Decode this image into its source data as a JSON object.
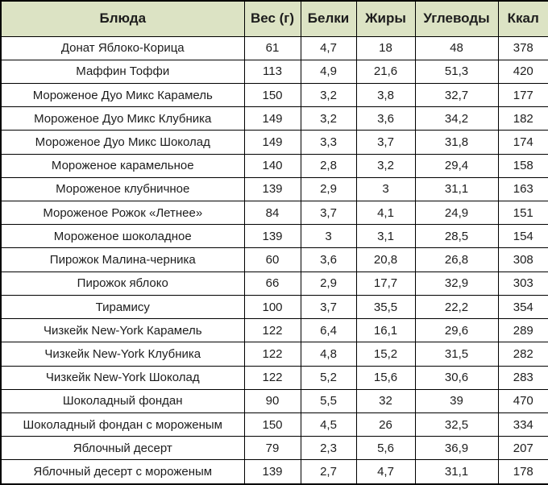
{
  "colors": {
    "header_bg": "#dce3c4",
    "border": "#000000",
    "text": "#1d1d1d",
    "row_bg": "#ffffff"
  },
  "chart_data": {
    "type": "table",
    "title": "",
    "columns": [
      "Блюда",
      "Вес (г)",
      "Белки",
      "Жиры",
      "Углеводы",
      "Ккал"
    ],
    "rows": [
      [
        "Донат Яблоко-Корица",
        "61",
        "4,7",
        "18",
        "48",
        "378"
      ],
      [
        "Маффин Тоффи",
        "113",
        "4,9",
        "21,6",
        "51,3",
        "420"
      ],
      [
        "Мороженое Дуо Микс Карамель",
        "150",
        "3,2",
        "3,8",
        "32,7",
        "177"
      ],
      [
        "Мороженое Дуо Микс Клубника",
        "149",
        "3,2",
        "3,6",
        "34,2",
        "182"
      ],
      [
        "Мороженое Дуо Микс Шоколад",
        "149",
        "3,3",
        "3,7",
        "31,8",
        "174"
      ],
      [
        "Мороженое карамельное",
        "140",
        "2,8",
        "3,2",
        "29,4",
        "158"
      ],
      [
        "Мороженое клубничное",
        "139",
        "2,9",
        "3",
        "31,1",
        "163"
      ],
      [
        "Мороженое Рожок «Летнее»",
        "84",
        "3,7",
        "4,1",
        "24,9",
        "151"
      ],
      [
        "Мороженое шоколадное",
        "139",
        "3",
        "3,1",
        "28,5",
        "154"
      ],
      [
        "Пирожок Малина-черника",
        "60",
        "3,6",
        "20,8",
        "26,8",
        "308"
      ],
      [
        "Пирожок яблоко",
        "66",
        "2,9",
        "17,7",
        "32,9",
        "303"
      ],
      [
        "Тирамису",
        "100",
        "3,7",
        "35,5",
        "22,2",
        "354"
      ],
      [
        "Чизкейк New-York Карамель",
        "122",
        "6,4",
        "16,1",
        "29,6",
        "289"
      ],
      [
        "Чизкейк New-York Клубника",
        "122",
        "4,8",
        "15,2",
        "31,5",
        "282"
      ],
      [
        "Чизкейк New-York Шоколад",
        "122",
        "5,2",
        "15,6",
        "30,6",
        "283"
      ],
      [
        "Шоколадный фондан",
        "90",
        "5,5",
        "32",
        "39",
        "470"
      ],
      [
        "Шоколадный фондан с мороженым",
        "150",
        "4,5",
        "26",
        "32,5",
        "334"
      ],
      [
        "Яблочный десерт",
        "79",
        "2,3",
        "5,6",
        "36,9",
        "207"
      ],
      [
        "Яблочный десерт с мороженым",
        "139",
        "2,7",
        "4,7",
        "31,1",
        "178"
      ]
    ]
  }
}
